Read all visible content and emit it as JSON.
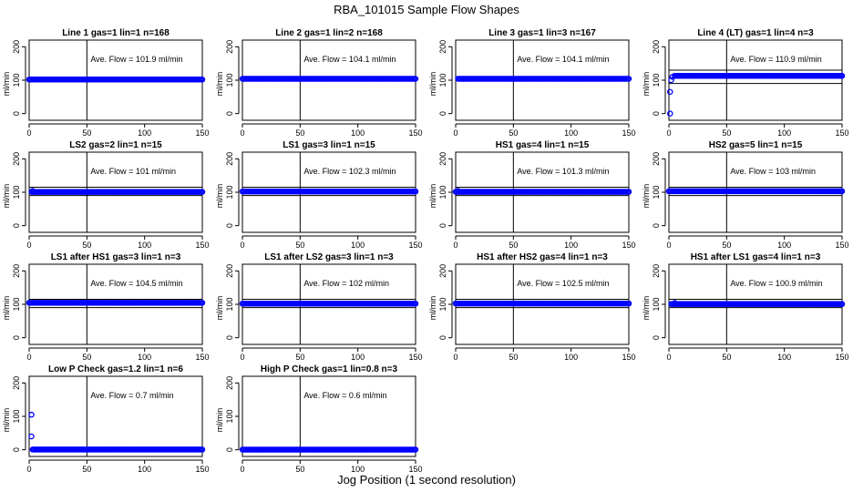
{
  "figure_title": "RBA_101015  Sample Flow Shapes",
  "x_axis_title": "Jog Position (1 second resolution)",
  "colors": {
    "points": "#0000ff",
    "axes": "#000000",
    "ref_lines": "#000000"
  },
  "chart_data": [
    {
      "type": "scatter",
      "title": "Line 1 gas=1 lin=1 n=168",
      "ylabel": "ml/min",
      "xlim": [
        0,
        150
      ],
      "ylim": [
        -20,
        220
      ],
      "xticks": [
        0,
        50,
        100,
        150
      ],
      "yticks": [
        0,
        100,
        200
      ],
      "vline_x": 50,
      "hlines_y": [],
      "annotation": "Ave. Flow =  101.9  ml/min",
      "series": [
        {
          "name": "flow",
          "segments": [
            {
              "x_start": 0,
              "x_end": 150,
              "y": 101.9
            }
          ],
          "points": []
        }
      ]
    },
    {
      "type": "scatter",
      "title": "Line 2 gas=1 lin=2 n=168",
      "ylabel": "ml/min",
      "xlim": [
        0,
        150
      ],
      "ylim": [
        -20,
        220
      ],
      "xticks": [
        0,
        50,
        100,
        150
      ],
      "yticks": [
        0,
        100,
        200
      ],
      "vline_x": 50,
      "hlines_y": [],
      "annotation": "Ave. Flow =  104.1  ml/min",
      "series": [
        {
          "name": "flow",
          "segments": [
            {
              "x_start": 0,
              "x_end": 150,
              "y": 104.1
            }
          ],
          "points": []
        }
      ]
    },
    {
      "type": "scatter",
      "title": "Line 3 gas=1 lin=3 n=167",
      "ylabel": "ml/min",
      "xlim": [
        0,
        150
      ],
      "ylim": [
        -20,
        220
      ],
      "xticks": [
        0,
        50,
        100,
        150
      ],
      "yticks": [
        0,
        100,
        200
      ],
      "vline_x": 50,
      "hlines_y": [],
      "annotation": "Ave. Flow =  104.1  ml/min",
      "series": [
        {
          "name": "flow",
          "segments": [
            {
              "x_start": 2,
              "x_end": 150,
              "y": 104.1
            }
          ],
          "points": []
        }
      ]
    },
    {
      "type": "scatter",
      "title": "Line 4 (LT) gas=1 lin=4 n=3",
      "ylabel": "ml/min",
      "xlim": [
        0,
        150
      ],
      "ylim": [
        -20,
        220
      ],
      "xticks": [
        0,
        50,
        100,
        150
      ],
      "yticks": [
        0,
        100,
        200
      ],
      "vline_x": 50,
      "hlines_y": [
        90,
        130
      ],
      "annotation": "Ave. Flow =  110.9  ml/min",
      "series": [
        {
          "name": "flow",
          "segments": [
            {
              "x_start": 5,
              "x_end": 150,
              "y": 113
            }
          ],
          "points": [
            {
              "x": 1,
              "y": 0
            },
            {
              "x": 1,
              "y": 65
            },
            {
              "x": 2,
              "y": 100
            },
            {
              "x": 3,
              "y": 110
            }
          ]
        }
      ]
    },
    {
      "type": "scatter",
      "title": "LS2 gas=2 lin=1 n=15",
      "ylabel": "ml/min",
      "xlim": [
        0,
        150
      ],
      "ylim": [
        -20,
        220
      ],
      "xticks": [
        0,
        50,
        100,
        150
      ],
      "yticks": [
        0,
        100,
        200
      ],
      "vline_x": 50,
      "hlines_y": [
        90,
        115
      ],
      "annotation": "Ave. Flow =  101  ml/min",
      "series": [
        {
          "name": "flow",
          "segments": [
            {
              "x_start": 2,
              "x_end": 150,
              "y": 101
            }
          ],
          "points": [
            {
              "x": 3,
              "y": 104
            }
          ]
        }
      ]
    },
    {
      "type": "scatter",
      "title": "LS1 gas=3 lin=1 n=15",
      "ylabel": "ml/min",
      "xlim": [
        0,
        150
      ],
      "ylim": [
        -20,
        220
      ],
      "xticks": [
        0,
        50,
        100,
        150
      ],
      "yticks": [
        0,
        100,
        200
      ],
      "vline_x": 50,
      "hlines_y": [
        90,
        115
      ],
      "annotation": "Ave. Flow =  102.3  ml/min",
      "series": [
        {
          "name": "flow",
          "segments": [
            {
              "x_start": 0,
              "x_end": 150,
              "y": 102.3
            }
          ],
          "points": []
        }
      ]
    },
    {
      "type": "scatter",
      "title": "HS1 gas=4 lin=1 n=15",
      "ylabel": "ml/min",
      "xlim": [
        0,
        150
      ],
      "ylim": [
        -20,
        220
      ],
      "xticks": [
        0,
        50,
        100,
        150
      ],
      "yticks": [
        0,
        100,
        200
      ],
      "vline_x": 50,
      "hlines_y": [
        90,
        115
      ],
      "annotation": "Ave. Flow =  101.3  ml/min",
      "series": [
        {
          "name": "flow",
          "segments": [
            {
              "x_start": 0,
              "x_end": 150,
              "y": 101.3
            }
          ],
          "points": [
            {
              "x": 2,
              "y": 104
            }
          ]
        }
      ]
    },
    {
      "type": "scatter",
      "title": "HS2 gas=5 lin=1 n=15",
      "ylabel": "ml/min",
      "xlim": [
        0,
        150
      ],
      "ylim": [
        -20,
        220
      ],
      "xticks": [
        0,
        50,
        100,
        150
      ],
      "yticks": [
        0,
        100,
        200
      ],
      "vline_x": 50,
      "hlines_y": [
        90,
        115
      ],
      "annotation": "Ave. Flow =  103  ml/min",
      "series": [
        {
          "name": "flow",
          "segments": [
            {
              "x_start": 0,
              "x_end": 150,
              "y": 103
            }
          ],
          "points": []
        }
      ]
    },
    {
      "type": "scatter",
      "title": "LS1 after HS1 gas=3 lin=1 n=3",
      "ylabel": "ml/min",
      "xlim": [
        0,
        150
      ],
      "ylim": [
        -20,
        220
      ],
      "xticks": [
        0,
        50,
        100,
        150
      ],
      "yticks": [
        0,
        100,
        200
      ],
      "vline_x": 50,
      "hlines_y": [
        90,
        115
      ],
      "annotation": "Ave. Flow =  104.5  ml/min",
      "series": [
        {
          "name": "flow",
          "segments": [
            {
              "x_start": 0,
              "x_end": 150,
              "y": 104.5
            }
          ],
          "points": []
        }
      ]
    },
    {
      "type": "scatter",
      "title": "LS1 after LS2 gas=3 lin=1 n=3",
      "ylabel": "ml/min",
      "xlim": [
        0,
        150
      ],
      "ylim": [
        -20,
        220
      ],
      "xticks": [
        0,
        50,
        100,
        150
      ],
      "yticks": [
        0,
        100,
        200
      ],
      "vline_x": 50,
      "hlines_y": [
        90,
        115
      ],
      "annotation": "Ave. Flow =  102  ml/min",
      "series": [
        {
          "name": "flow",
          "segments": [
            {
              "x_start": 0,
              "x_end": 150,
              "y": 102
            }
          ],
          "points": []
        }
      ]
    },
    {
      "type": "scatter",
      "title": "HS1 after HS2 gas=4 lin=1 n=3",
      "ylabel": "ml/min",
      "xlim": [
        0,
        150
      ],
      "ylim": [
        -20,
        220
      ],
      "xticks": [
        0,
        50,
        100,
        150
      ],
      "yticks": [
        0,
        100,
        200
      ],
      "vline_x": 50,
      "hlines_y": [
        90,
        115
      ],
      "annotation": "Ave. Flow =  102.5  ml/min",
      "series": [
        {
          "name": "flow",
          "segments": [
            {
              "x_start": 0,
              "x_end": 150,
              "y": 102.5
            }
          ],
          "points": []
        }
      ]
    },
    {
      "type": "scatter",
      "title": "HS1 after LS1 gas=4 lin=1 n=3",
      "ylabel": "ml/min",
      "xlim": [
        0,
        150
      ],
      "ylim": [
        -20,
        220
      ],
      "xticks": [
        0,
        50,
        100,
        150
      ],
      "yticks": [
        0,
        100,
        200
      ],
      "vline_x": 50,
      "hlines_y": [
        90,
        115
      ],
      "annotation": "Ave. Flow =  100.9  ml/min",
      "series": [
        {
          "name": "flow",
          "segments": [
            {
              "x_start": 2,
              "x_end": 150,
              "y": 100.9
            }
          ],
          "points": [
            {
              "x": 5,
              "y": 104
            }
          ]
        }
      ]
    },
    {
      "type": "scatter",
      "title": "Low P Check gas=1.2 lin=1 n=6",
      "ylabel": "ml/min",
      "xlim": [
        0,
        150
      ],
      "ylim": [
        -20,
        220
      ],
      "xticks": [
        0,
        50,
        100,
        150
      ],
      "yticks": [
        0,
        100,
        200
      ],
      "vline_x": 50,
      "hlines_y": [],
      "annotation": "Ave. Flow =  0.7  ml/min",
      "series": [
        {
          "name": "flow",
          "segments": [
            {
              "x_start": 3,
              "x_end": 150,
              "y": 0.7
            }
          ],
          "points": [
            {
              "x": 2,
              "y": 105
            },
            {
              "x": 2,
              "y": 40
            }
          ]
        }
      ]
    },
    {
      "type": "scatter",
      "title": "High P Check gas=1 lin=0.8 n=3",
      "ylabel": "ml/min",
      "xlim": [
        0,
        150
      ],
      "ylim": [
        -20,
        220
      ],
      "xticks": [
        0,
        50,
        100,
        150
      ],
      "yticks": [
        0,
        100,
        200
      ],
      "vline_x": 50,
      "hlines_y": [],
      "annotation": "Ave. Flow =  0.6  ml/min",
      "series": [
        {
          "name": "flow",
          "segments": [
            {
              "x_start": 0,
              "x_end": 150,
              "y": 0.6
            }
          ],
          "points": []
        }
      ]
    }
  ]
}
